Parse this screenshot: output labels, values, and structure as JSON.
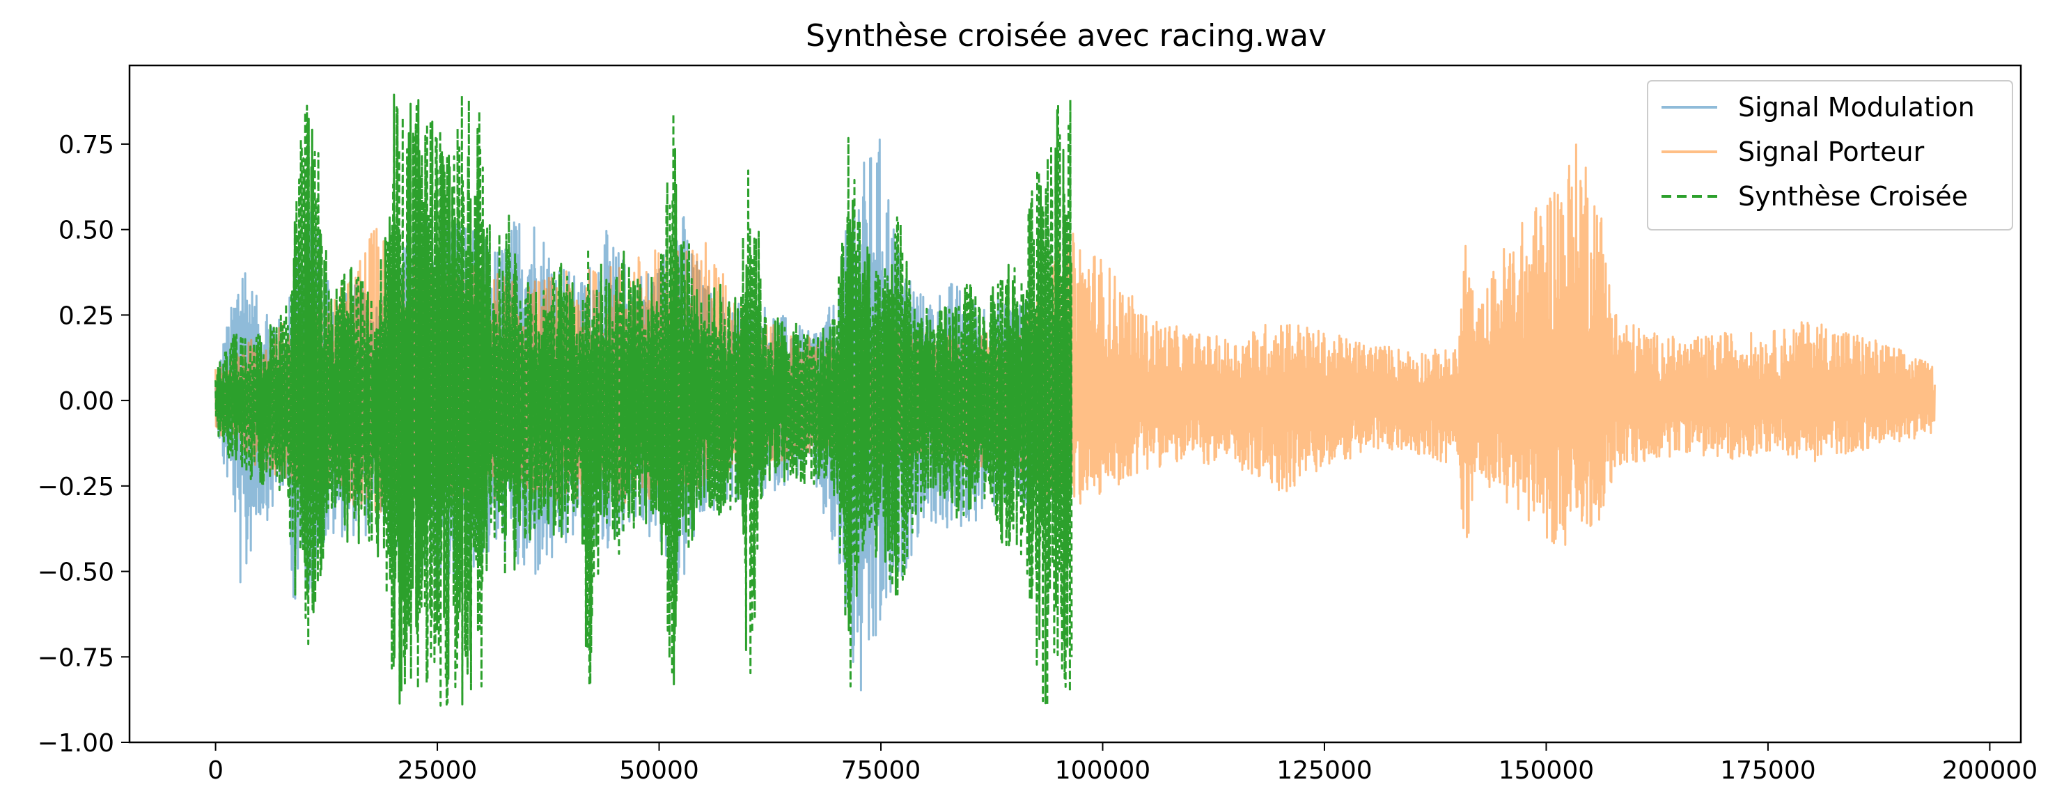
{
  "chart_data": {
    "type": "line",
    "title": "Synthèse croisée avec racing.wav",
    "xlabel": "",
    "ylabel": "",
    "xlim": [
      -9700,
      203500
    ],
    "ylim": [
      -1.0,
      0.98
    ],
    "x_ticks": [
      0,
      25000,
      50000,
      75000,
      100000,
      125000,
      150000,
      175000,
      200000
    ],
    "x_tick_labels": [
      "0",
      "25000",
      "50000",
      "75000",
      "100000",
      "125000",
      "150000",
      "175000",
      "200000"
    ],
    "y_ticks": [
      0.75,
      0.5,
      0.25,
      0.0,
      -0.25,
      -0.5,
      -0.75,
      -1.0
    ],
    "y_tick_labels": [
      "0.75",
      "0.50",
      "0.25",
      "0.00",
      "−0.25",
      "−0.50",
      "−0.75",
      "−1.00"
    ],
    "grid": false,
    "legend_position": "top-right",
    "series": [
      {
        "name": "Signal Modulation",
        "color": "#1f77b4",
        "alpha": 0.5,
        "style": "solid",
        "x_range": [
          0,
          96500
        ],
        "envelope": {
          "x": [
            0,
            1000,
            2000,
            3000,
            4000,
            5000,
            6000,
            7000,
            8000,
            9000,
            10000,
            11000,
            12000,
            14000,
            16000,
            18000,
            20000,
            23000,
            26000,
            29000,
            32000,
            35000,
            38000,
            41000,
            44000,
            47000,
            50000,
            52000,
            55000,
            58000,
            61000,
            64000,
            67000,
            70000,
            72000,
            73000,
            75000,
            77000,
            80000,
            83000,
            86000,
            89000,
            92000,
            94000,
            96500
          ],
          "max": [
            0.05,
            0.2,
            0.3,
            0.48,
            0.35,
            0.28,
            0.3,
            0.25,
            0.2,
            0.55,
            0.5,
            0.6,
            0.45,
            0.3,
            0.35,
            0.3,
            0.4,
            0.55,
            0.6,
            0.5,
            0.45,
            0.6,
            0.45,
            0.35,
            0.5,
            0.38,
            0.4,
            0.62,
            0.35,
            0.3,
            0.3,
            0.25,
            0.2,
            0.3,
            0.68,
            0.7,
            0.78,
            0.45,
            0.3,
            0.35,
            0.3,
            0.3,
            0.3,
            0.25,
            0.2
          ],
          "min": [
            -0.05,
            -0.22,
            -0.3,
            -0.62,
            -0.45,
            -0.35,
            -0.35,
            -0.3,
            -0.25,
            -0.68,
            -0.55,
            -0.6,
            -0.45,
            -0.4,
            -0.4,
            -0.4,
            -0.45,
            -0.55,
            -0.6,
            -0.5,
            -0.45,
            -0.55,
            -0.5,
            -0.4,
            -0.45,
            -0.35,
            -0.45,
            -0.6,
            -0.35,
            -0.3,
            -0.3,
            -0.25,
            -0.2,
            -0.5,
            -0.85,
            -0.92,
            -0.7,
            -0.55,
            -0.35,
            -0.4,
            -0.35,
            -0.3,
            -0.35,
            -0.3,
            -0.2
          ]
        }
      },
      {
        "name": "Signal Porteur",
        "color": "#ff7f0e",
        "alpha": 0.5,
        "style": "solid",
        "x_range": [
          0,
          193800
        ],
        "envelope": {
          "x": [
            0,
            5000,
            10000,
            15000,
            18000,
            20000,
            25000,
            30000,
            35000,
            40000,
            45000,
            50000,
            55000,
            60000,
            65000,
            70000,
            75000,
            80000,
            85000,
            90000,
            95000,
            97000,
            100000,
            105000,
            110000,
            115000,
            120000,
            125000,
            130000,
            135000,
            140000,
            141000,
            142000,
            145000,
            148000,
            150000,
            152000,
            154000,
            156000,
            158000,
            162000,
            166000,
            170000,
            175000,
            180000,
            185000,
            190000,
            193800
          ],
          "max": [
            0.1,
            0.2,
            0.25,
            0.35,
            0.52,
            0.45,
            0.4,
            0.4,
            0.35,
            0.38,
            0.4,
            0.45,
            0.48,
            0.25,
            0.2,
            0.18,
            0.22,
            0.2,
            0.2,
            0.2,
            0.45,
            0.5,
            0.42,
            0.25,
            0.2,
            0.18,
            0.25,
            0.2,
            0.17,
            0.15,
            0.15,
            0.54,
            0.25,
            0.45,
            0.55,
            0.62,
            0.7,
            0.78,
            0.6,
            0.25,
            0.2,
            0.18,
            0.2,
            0.2,
            0.24,
            0.2,
            0.15,
            0.1
          ],
          "min": [
            -0.1,
            -0.2,
            -0.25,
            -0.3,
            -0.35,
            -0.3,
            -0.3,
            -0.3,
            -0.28,
            -0.3,
            -0.3,
            -0.3,
            -0.25,
            -0.2,
            -0.18,
            -0.15,
            -0.2,
            -0.18,
            -0.2,
            -0.2,
            -0.3,
            -0.32,
            -0.28,
            -0.2,
            -0.18,
            -0.2,
            -0.28,
            -0.2,
            -0.15,
            -0.15,
            -0.2,
            -0.48,
            -0.2,
            -0.3,
            -0.35,
            -0.4,
            -0.45,
            -0.4,
            -0.35,
            -0.2,
            -0.18,
            -0.15,
            -0.18,
            -0.15,
            -0.18,
            -0.15,
            -0.12,
            -0.1
          ]
        }
      },
      {
        "name": "Synthèse Croisée",
        "color": "#2ca02c",
        "alpha": 1.0,
        "style": "dashed",
        "x_range": [
          0,
          96500
        ],
        "clip": [
          -0.9,
          0.9
        ],
        "envelope": {
          "x": [
            0,
            2000,
            4000,
            6000,
            8000,
            10000,
            11500,
            13000,
            15000,
            17000,
            19000,
            20000,
            22000,
            24000,
            26000,
            28000,
            30000,
            31000,
            33000,
            35000,
            37000,
            39000,
            41000,
            42000,
            44000,
            46000,
            48000,
            50000,
            51500,
            53000,
            55000,
            57000,
            59000,
            60000,
            62000,
            64000,
            66000,
            68000,
            70000,
            71500,
            73000,
            75000,
            77000,
            79000,
            81000,
            83000,
            85000,
            87000,
            89000,
            91000,
            93000,
            95000,
            96500
          ],
          "max": [
            0.1,
            0.2,
            0.18,
            0.22,
            0.3,
            0.9,
            0.75,
            0.3,
            0.4,
            0.35,
            0.45,
            0.9,
            0.9,
            0.9,
            0.9,
            0.9,
            0.9,
            0.5,
            0.55,
            0.4,
            0.35,
            0.42,
            0.3,
            0.48,
            0.38,
            0.45,
            0.4,
            0.35,
            0.9,
            0.5,
            0.3,
            0.35,
            0.3,
            0.9,
            0.25,
            0.25,
            0.22,
            0.2,
            0.28,
            0.9,
            0.5,
            0.35,
            0.6,
            0.3,
            0.25,
            0.3,
            0.35,
            0.28,
            0.45,
            0.4,
            0.9,
            0.9,
            0.9
          ],
          "min": [
            -0.1,
            -0.2,
            -0.25,
            -0.25,
            -0.3,
            -0.9,
            -0.6,
            -0.35,
            -0.45,
            -0.4,
            -0.55,
            -0.9,
            -0.9,
            -0.9,
            -0.9,
            -0.9,
            -0.9,
            -0.5,
            -0.55,
            -0.45,
            -0.35,
            -0.45,
            -0.35,
            -0.9,
            -0.45,
            -0.45,
            -0.4,
            -0.35,
            -0.9,
            -0.5,
            -0.3,
            -0.35,
            -0.3,
            -0.9,
            -0.25,
            -0.25,
            -0.25,
            -0.25,
            -0.3,
            -0.9,
            -0.5,
            -0.45,
            -0.6,
            -0.35,
            -0.3,
            -0.35,
            -0.35,
            -0.28,
            -0.45,
            -0.45,
            -0.9,
            -0.9,
            -0.9
          ]
        }
      }
    ]
  }
}
